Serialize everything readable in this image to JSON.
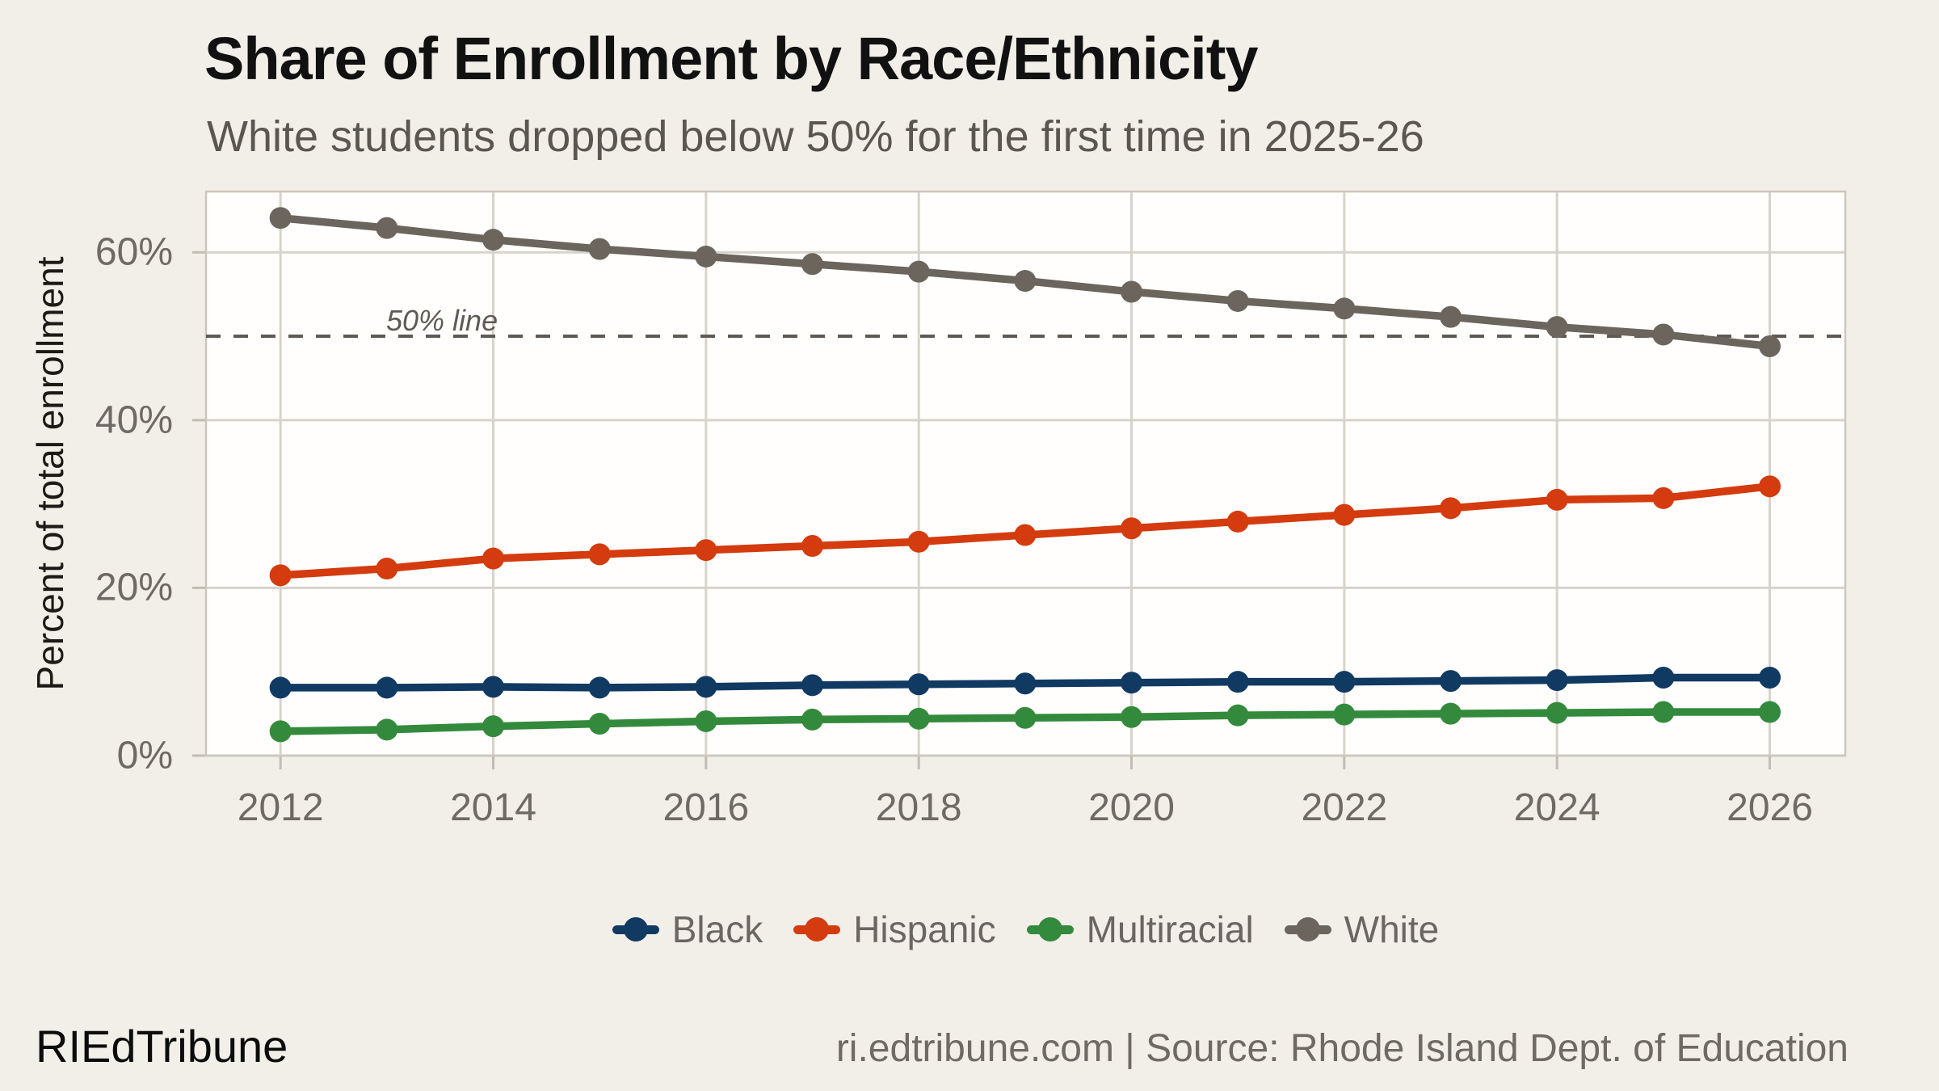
{
  "page": {
    "background": "#f2efe9",
    "title": "Share of Enrollment by Race/Ethnicity",
    "subtitle": "White students dropped below 50% for the first time in 2025-26",
    "footer": {
      "brand": "RIEdTribune",
      "attribution": "ri.edtribune.com | Source: Rhode Island Dept. of Education"
    }
  },
  "chart_data": {
    "type": "line",
    "title": "Share of Enrollment by Race/Ethnicity",
    "subtitle": "White students dropped below 50% for the first time in 2025-26",
    "xlabel": "",
    "ylabel": "Percent of total enrollment",
    "x": [
      2012,
      2013,
      2014,
      2015,
      2016,
      2017,
      2018,
      2019,
      2020,
      2021,
      2022,
      2023,
      2024,
      2025,
      2026
    ],
    "series": [
      {
        "name": "Black",
        "color": "#113a63",
        "values": [
          8.1,
          8.1,
          8.2,
          8.1,
          8.2,
          8.4,
          8.5,
          8.6,
          8.7,
          8.8,
          8.8,
          8.9,
          9.0,
          9.3,
          9.3
        ]
      },
      {
        "name": "Hispanic",
        "color": "#d43b0e",
        "values": [
          21.5,
          22.3,
          23.5,
          24.0,
          24.5,
          25.0,
          25.5,
          26.3,
          27.1,
          27.9,
          28.7,
          29.5,
          30.5,
          30.7,
          32.1
        ]
      },
      {
        "name": "Multiracial",
        "color": "#348a3c",
        "values": [
          2.9,
          3.1,
          3.5,
          3.8,
          4.1,
          4.3,
          4.4,
          4.5,
          4.6,
          4.8,
          4.9,
          5.0,
          5.1,
          5.2,
          5.2
        ]
      },
      {
        "name": "White",
        "color": "#6b655e",
        "values": [
          64.1,
          62.9,
          61.5,
          60.4,
          59.5,
          58.6,
          57.7,
          56.6,
          55.3,
          54.2,
          53.3,
          52.3,
          51.1,
          50.2,
          48.8
        ]
      }
    ],
    "xticks": [
      2012,
      2014,
      2016,
      2018,
      2020,
      2022,
      2024,
      2026
    ],
    "yticks": [
      0,
      20,
      40,
      60
    ],
    "ytick_suffix": "%",
    "xlim": [
      2011.3,
      2026.71
    ],
    "ylim": [
      0,
      67.25
    ],
    "grid": true,
    "legend_position": "bottom-center",
    "panel_bg": "#fffefc",
    "panel_border_color": "#ccc6bc",
    "grid_color": "#d8d3ca",
    "tick_color": "#c2bcb2",
    "reference_line": {
      "y": 50,
      "label": "50% line",
      "color": "#5f5a54",
      "dash": [
        18,
        16
      ]
    }
  }
}
